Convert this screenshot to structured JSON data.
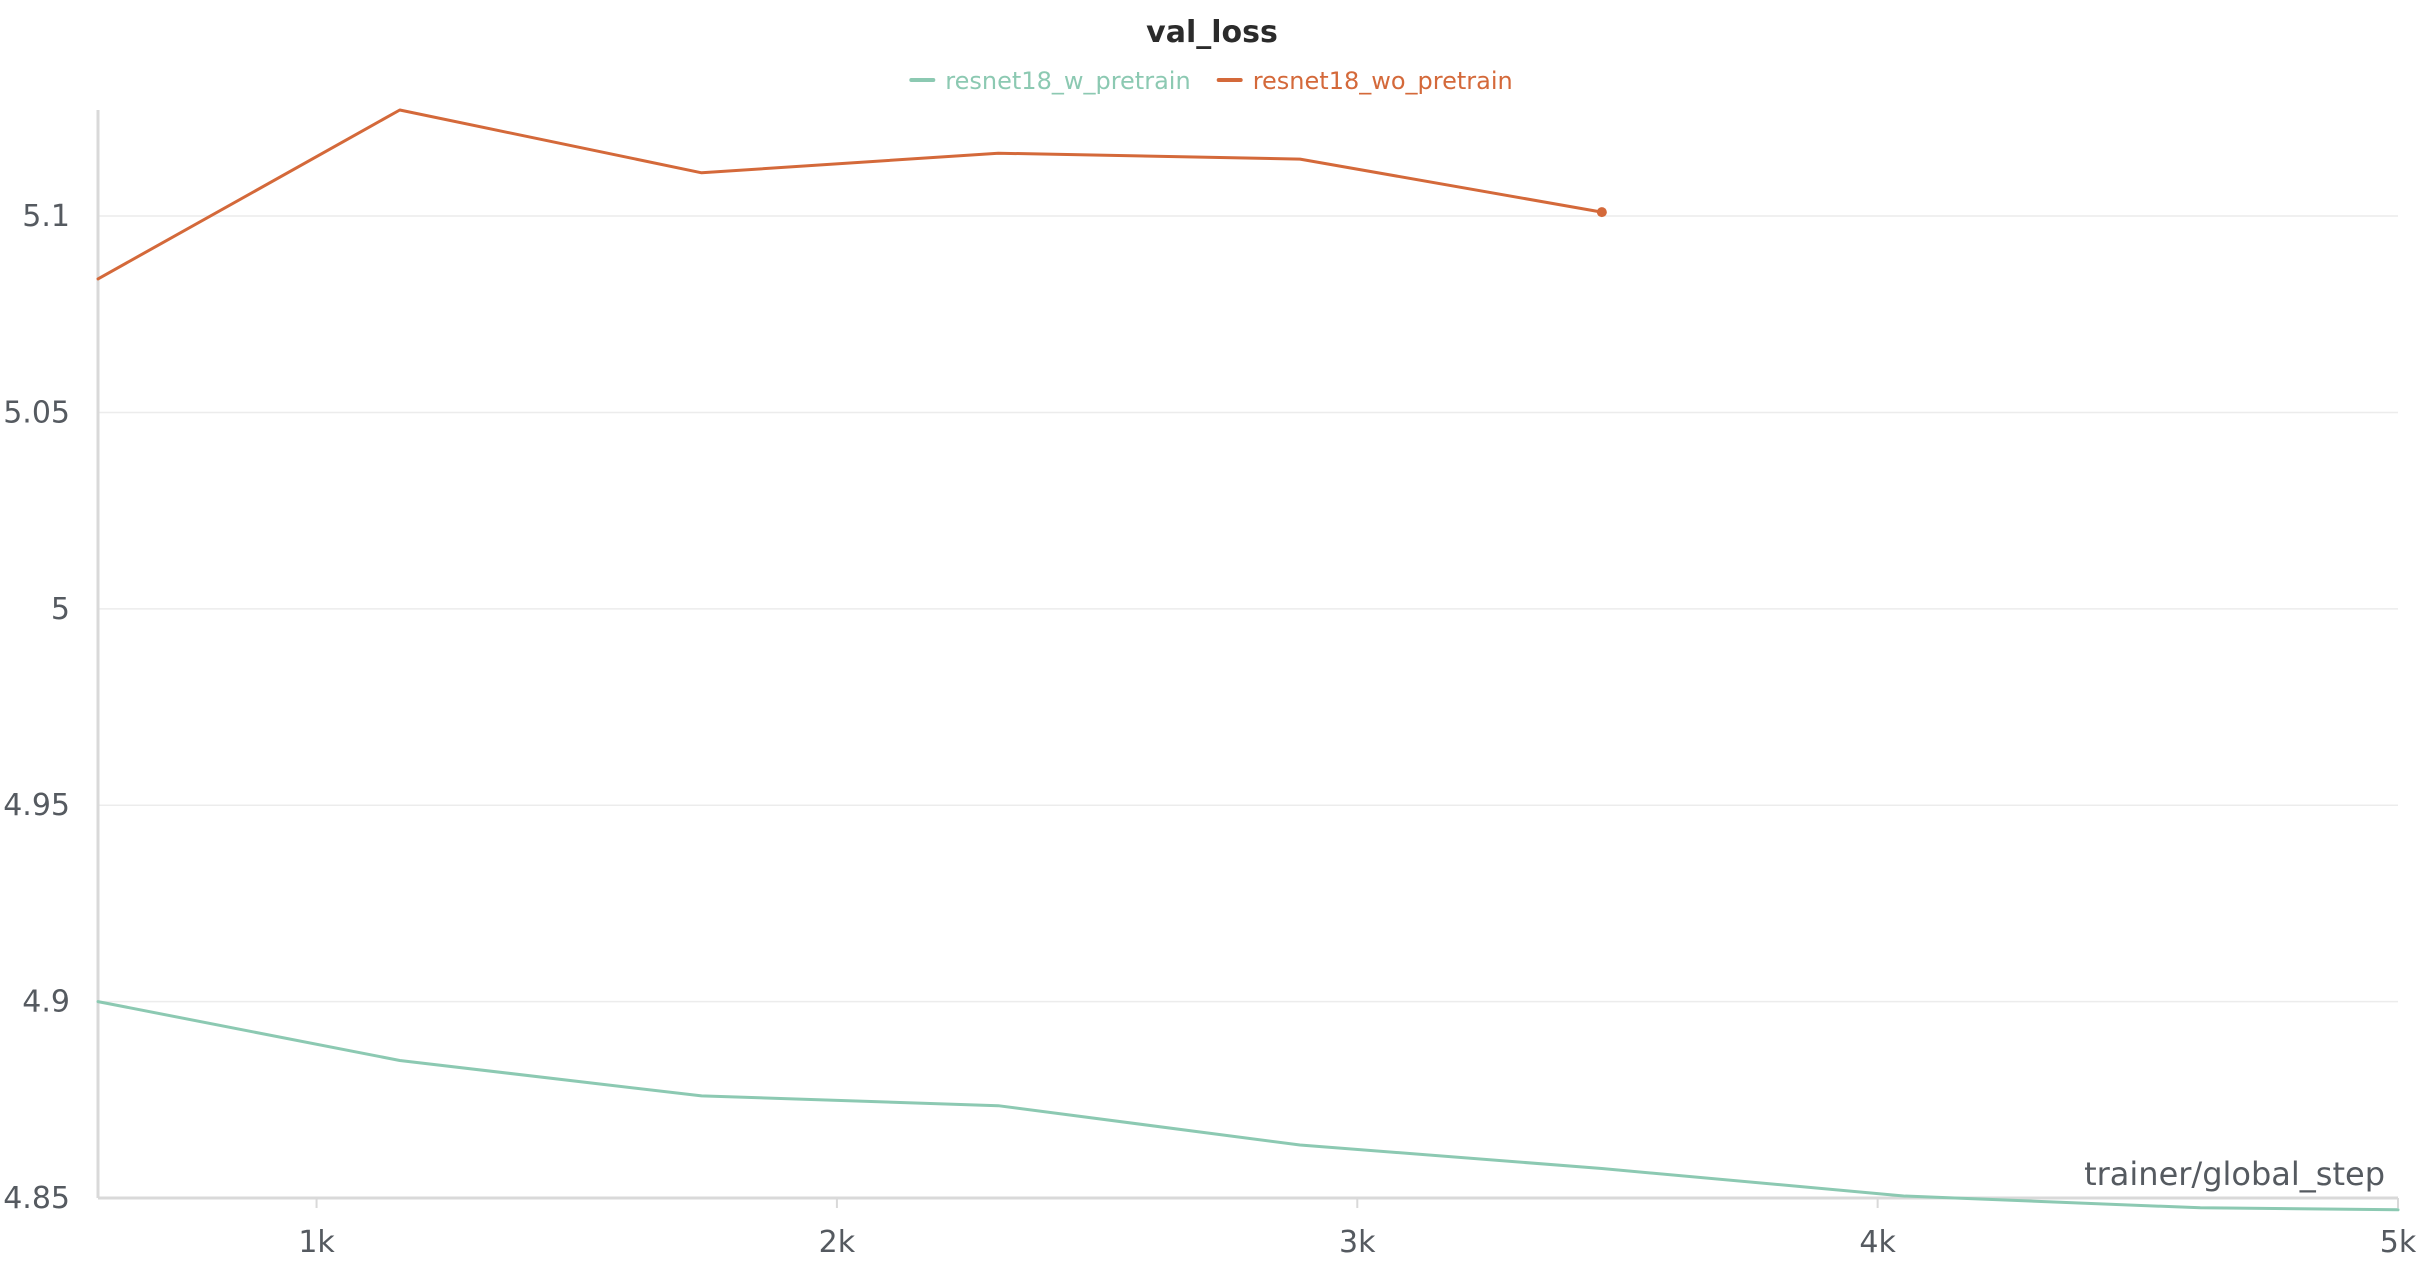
{
  "chart_data": {
    "type": "line",
    "title": "val_loss",
    "xlabel": "trainer/global_step",
    "ylabel": "",
    "xlim": [
      580,
      5000
    ],
    "ylim": [
      4.85,
      5.127
    ],
    "x_ticks": [
      1000,
      2000,
      3000,
      4000,
      5000
    ],
    "x_tick_labels": [
      "1k",
      "2k",
      "3k",
      "4k",
      "5k"
    ],
    "y_ticks": [
      4.85,
      4.9,
      4.95,
      5,
      5.05,
      5.1
    ],
    "y_tick_labels": [
      "4.85",
      "4.9",
      "4.95",
      "5",
      "5.05",
      "5.1"
    ],
    "grid": true,
    "legend_position": "top-center",
    "series": [
      {
        "name": "resnet18_w_pretrain",
        "color": "#8cc9b2",
        "x": [
          580,
          1160,
          1740,
          2310,
          2890,
          3470,
          4050,
          4620,
          5000
        ],
        "y": [
          4.9,
          4.885,
          4.876,
          4.8735,
          4.8635,
          4.8575,
          4.8505,
          4.8475,
          4.847
        ]
      },
      {
        "name": "resnet18_wo_pretrain",
        "color": "#d4693a",
        "x": [
          580,
          1160,
          1740,
          2310,
          2890,
          3470
        ],
        "y": [
          5.084,
          5.127,
          5.111,
          5.116,
          5.1145,
          5.101
        ]
      }
    ]
  }
}
